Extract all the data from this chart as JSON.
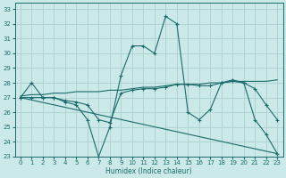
{
  "xlabel": "Humidex (Indice chaleur)",
  "xlim": [
    -0.5,
    23.5
  ],
  "ylim": [
    23,
    33.4
  ],
  "yticks": [
    23,
    24,
    25,
    26,
    27,
    28,
    29,
    30,
    31,
    32,
    33
  ],
  "xticks": [
    0,
    1,
    2,
    3,
    4,
    5,
    6,
    7,
    8,
    9,
    10,
    11,
    12,
    13,
    14,
    15,
    16,
    17,
    18,
    19,
    20,
    21,
    22,
    23
  ],
  "bg_color": "#cce9e9",
  "grid_color": "#b0d4d4",
  "line_color": "#1a6b6b",
  "line1_x": [
    0,
    1,
    2,
    3,
    4,
    5,
    6,
    7,
    8,
    9,
    10,
    11,
    12,
    13,
    14,
    15,
    16,
    17,
    18,
    19,
    20,
    21,
    22,
    23
  ],
  "line1_y": [
    27,
    28,
    27,
    27,
    26.7,
    26.5,
    25.5,
    23,
    25,
    28.5,
    30.5,
    30.5,
    30,
    32.5,
    32,
    26,
    25.5,
    26.2,
    28,
    28.2,
    28,
    25.5,
    24.5,
    23.2
  ],
  "line2_x": [
    0,
    1,
    2,
    3,
    4,
    5,
    6,
    7,
    8,
    9,
    10,
    11,
    12,
    13,
    14,
    15,
    16,
    17,
    18,
    19,
    20,
    21,
    22,
    23
  ],
  "line2_y": [
    27,
    27,
    27,
    27,
    26.8,
    26.7,
    26.5,
    25.5,
    25.3,
    27.3,
    27.5,
    27.6,
    27.6,
    27.7,
    27.9,
    27.9,
    27.8,
    27.8,
    28,
    28.1,
    28,
    27.6,
    26.5,
    25.5
  ],
  "line3_x": [
    0,
    1,
    2,
    3,
    4,
    5,
    6,
    7,
    8,
    9,
    10,
    11,
    12,
    13,
    14,
    15,
    16,
    17,
    18,
    19,
    20,
    21,
    22,
    23
  ],
  "line3_y": [
    27.1,
    27.2,
    27.2,
    27.3,
    27.3,
    27.4,
    27.4,
    27.4,
    27.5,
    27.5,
    27.6,
    27.7,
    27.7,
    27.8,
    27.9,
    27.9,
    27.9,
    28.0,
    28.0,
    28.1,
    28.1,
    28.1,
    28.1,
    28.2
  ],
  "line4_x": [
    0,
    23
  ],
  "line4_y": [
    27.0,
    23.2
  ]
}
